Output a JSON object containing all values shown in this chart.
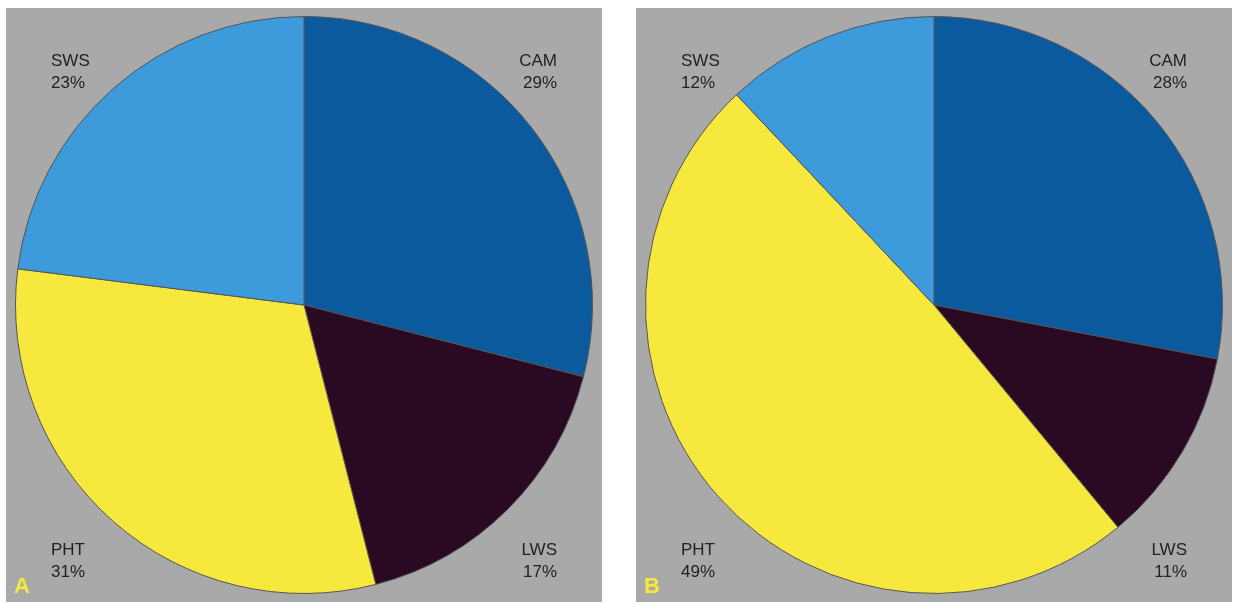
{
  "chart_data": [
    {
      "type": "pie",
      "categories": [
        "CAM",
        "LWS",
        "PHT",
        "SWS"
      ],
      "values": [
        29,
        17,
        31,
        23
      ],
      "value_labels": [
        "29%",
        "17%",
        "31%",
        "23%"
      ],
      "colors": [
        "#0b5a9e",
        "#2a0a22",
        "#f6e83c",
        "#3d9bdb"
      ],
      "legend": false,
      "annotations": [
        "A"
      ]
    },
    {
      "type": "pie",
      "categories": [
        "CAM",
        "LWS",
        "PHT",
        "SWS"
      ],
      "values": [
        28,
        11,
        49,
        12
      ],
      "value_labels": [
        "28%",
        "11%",
        "49%",
        "12%"
      ],
      "colors": [
        "#0b5a9e",
        "#2a0a22",
        "#f6e83c",
        "#3d9bdb"
      ],
      "legend": false,
      "annotations": [
        "B"
      ]
    }
  ]
}
